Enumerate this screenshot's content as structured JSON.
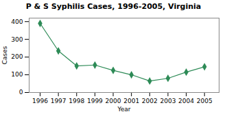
{
  "chart_data": {
    "type": "line",
    "title": "P & S Syphilis Cases, 1996-2005, Virginia",
    "xlabel": "Year",
    "ylabel": "Cases",
    "x": [
      1996,
      1997,
      1998,
      1999,
      2000,
      2001,
      2002,
      2003,
      2004,
      2005
    ],
    "values": [
      390,
      235,
      150,
      155,
      125,
      100,
      65,
      80,
      115,
      145
    ],
    "xlim": [
      1995.4,
      2005.8
    ],
    "xticks": [
      1996,
      1997,
      1998,
      1999,
      2000,
      2001,
      2002,
      2003,
      2004,
      2005
    ],
    "ylim": [
      0,
      420
    ],
    "yticks": [
      0,
      100,
      200,
      300,
      400
    ],
    "color": "#2e8b57",
    "marker": "diamond"
  }
}
